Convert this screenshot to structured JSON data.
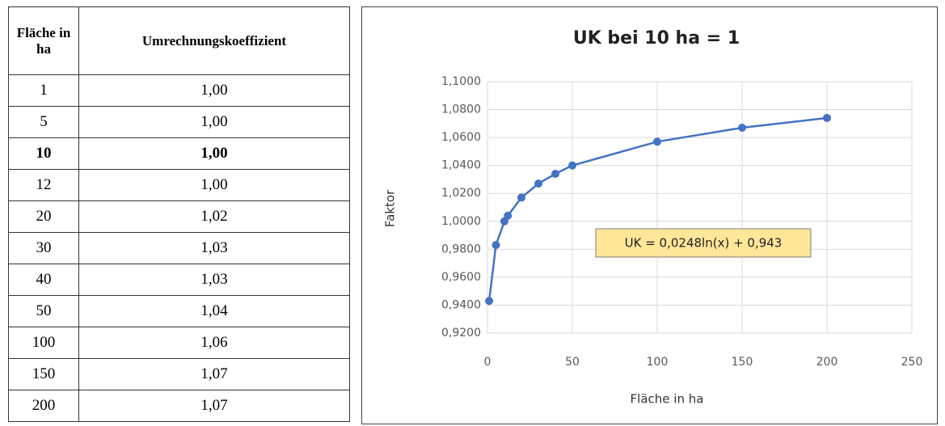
{
  "table": {
    "header": [
      "Fläche in ha",
      "Umrechnungskoeffizient"
    ],
    "rows": [
      [
        "1",
        "1,00"
      ],
      [
        "5",
        "1,00"
      ],
      [
        "10",
        "1,00"
      ],
      [
        "12",
        "1,00"
      ],
      [
        "20",
        "1,02"
      ],
      [
        "30",
        "1,03"
      ],
      [
        "40",
        "1,03"
      ],
      [
        "50",
        "1,04"
      ],
      [
        "100",
        "1,06"
      ],
      [
        "150",
        "1,07"
      ],
      [
        "200",
        "1,07"
      ]
    ]
  },
  "chart_data": {
    "type": "scatter",
    "title": "UK bei 10 ha = 1",
    "x_label": "Fläche in ha",
    "y_label": "Faktor",
    "annotation": "UK = 0,0248ln(x) + 0,943",
    "series": [
      {
        "color": "#4472c4",
        "x": [
          1,
          5,
          10,
          12,
          20,
          30,
          40,
          50,
          100,
          150,
          200
        ],
        "values": [
          0.943,
          0.983,
          1.0,
          1.004,
          1.017,
          1.027,
          1.034,
          1.04,
          1.057,
          1.067,
          1.074
        ]
      }
    ],
    "xlim": [
      0,
      250
    ],
    "xticks": [
      0,
      50,
      100,
      150,
      200,
      250
    ],
    "ylim": [
      0.92,
      1.1
    ],
    "yticks": [
      {
        "value": 0.92,
        "label": "0,9200"
      },
      {
        "value": 0.94,
        "label": "0,9400"
      },
      {
        "value": 0.96,
        "label": "0,9600"
      },
      {
        "value": 0.98,
        "label": "0,9800"
      },
      {
        "value": 1.0,
        "label": "1,0000"
      },
      {
        "value": 1.02,
        "label": "1,0200"
      },
      {
        "value": 1.04,
        "label": "1,0400"
      },
      {
        "value": 1.06,
        "label": "1,0600"
      },
      {
        "value": 1.08,
        "label": "1,0800"
      },
      {
        "value": 1.1,
        "label": "1,1000"
      }
    ],
    "grid": true
  }
}
